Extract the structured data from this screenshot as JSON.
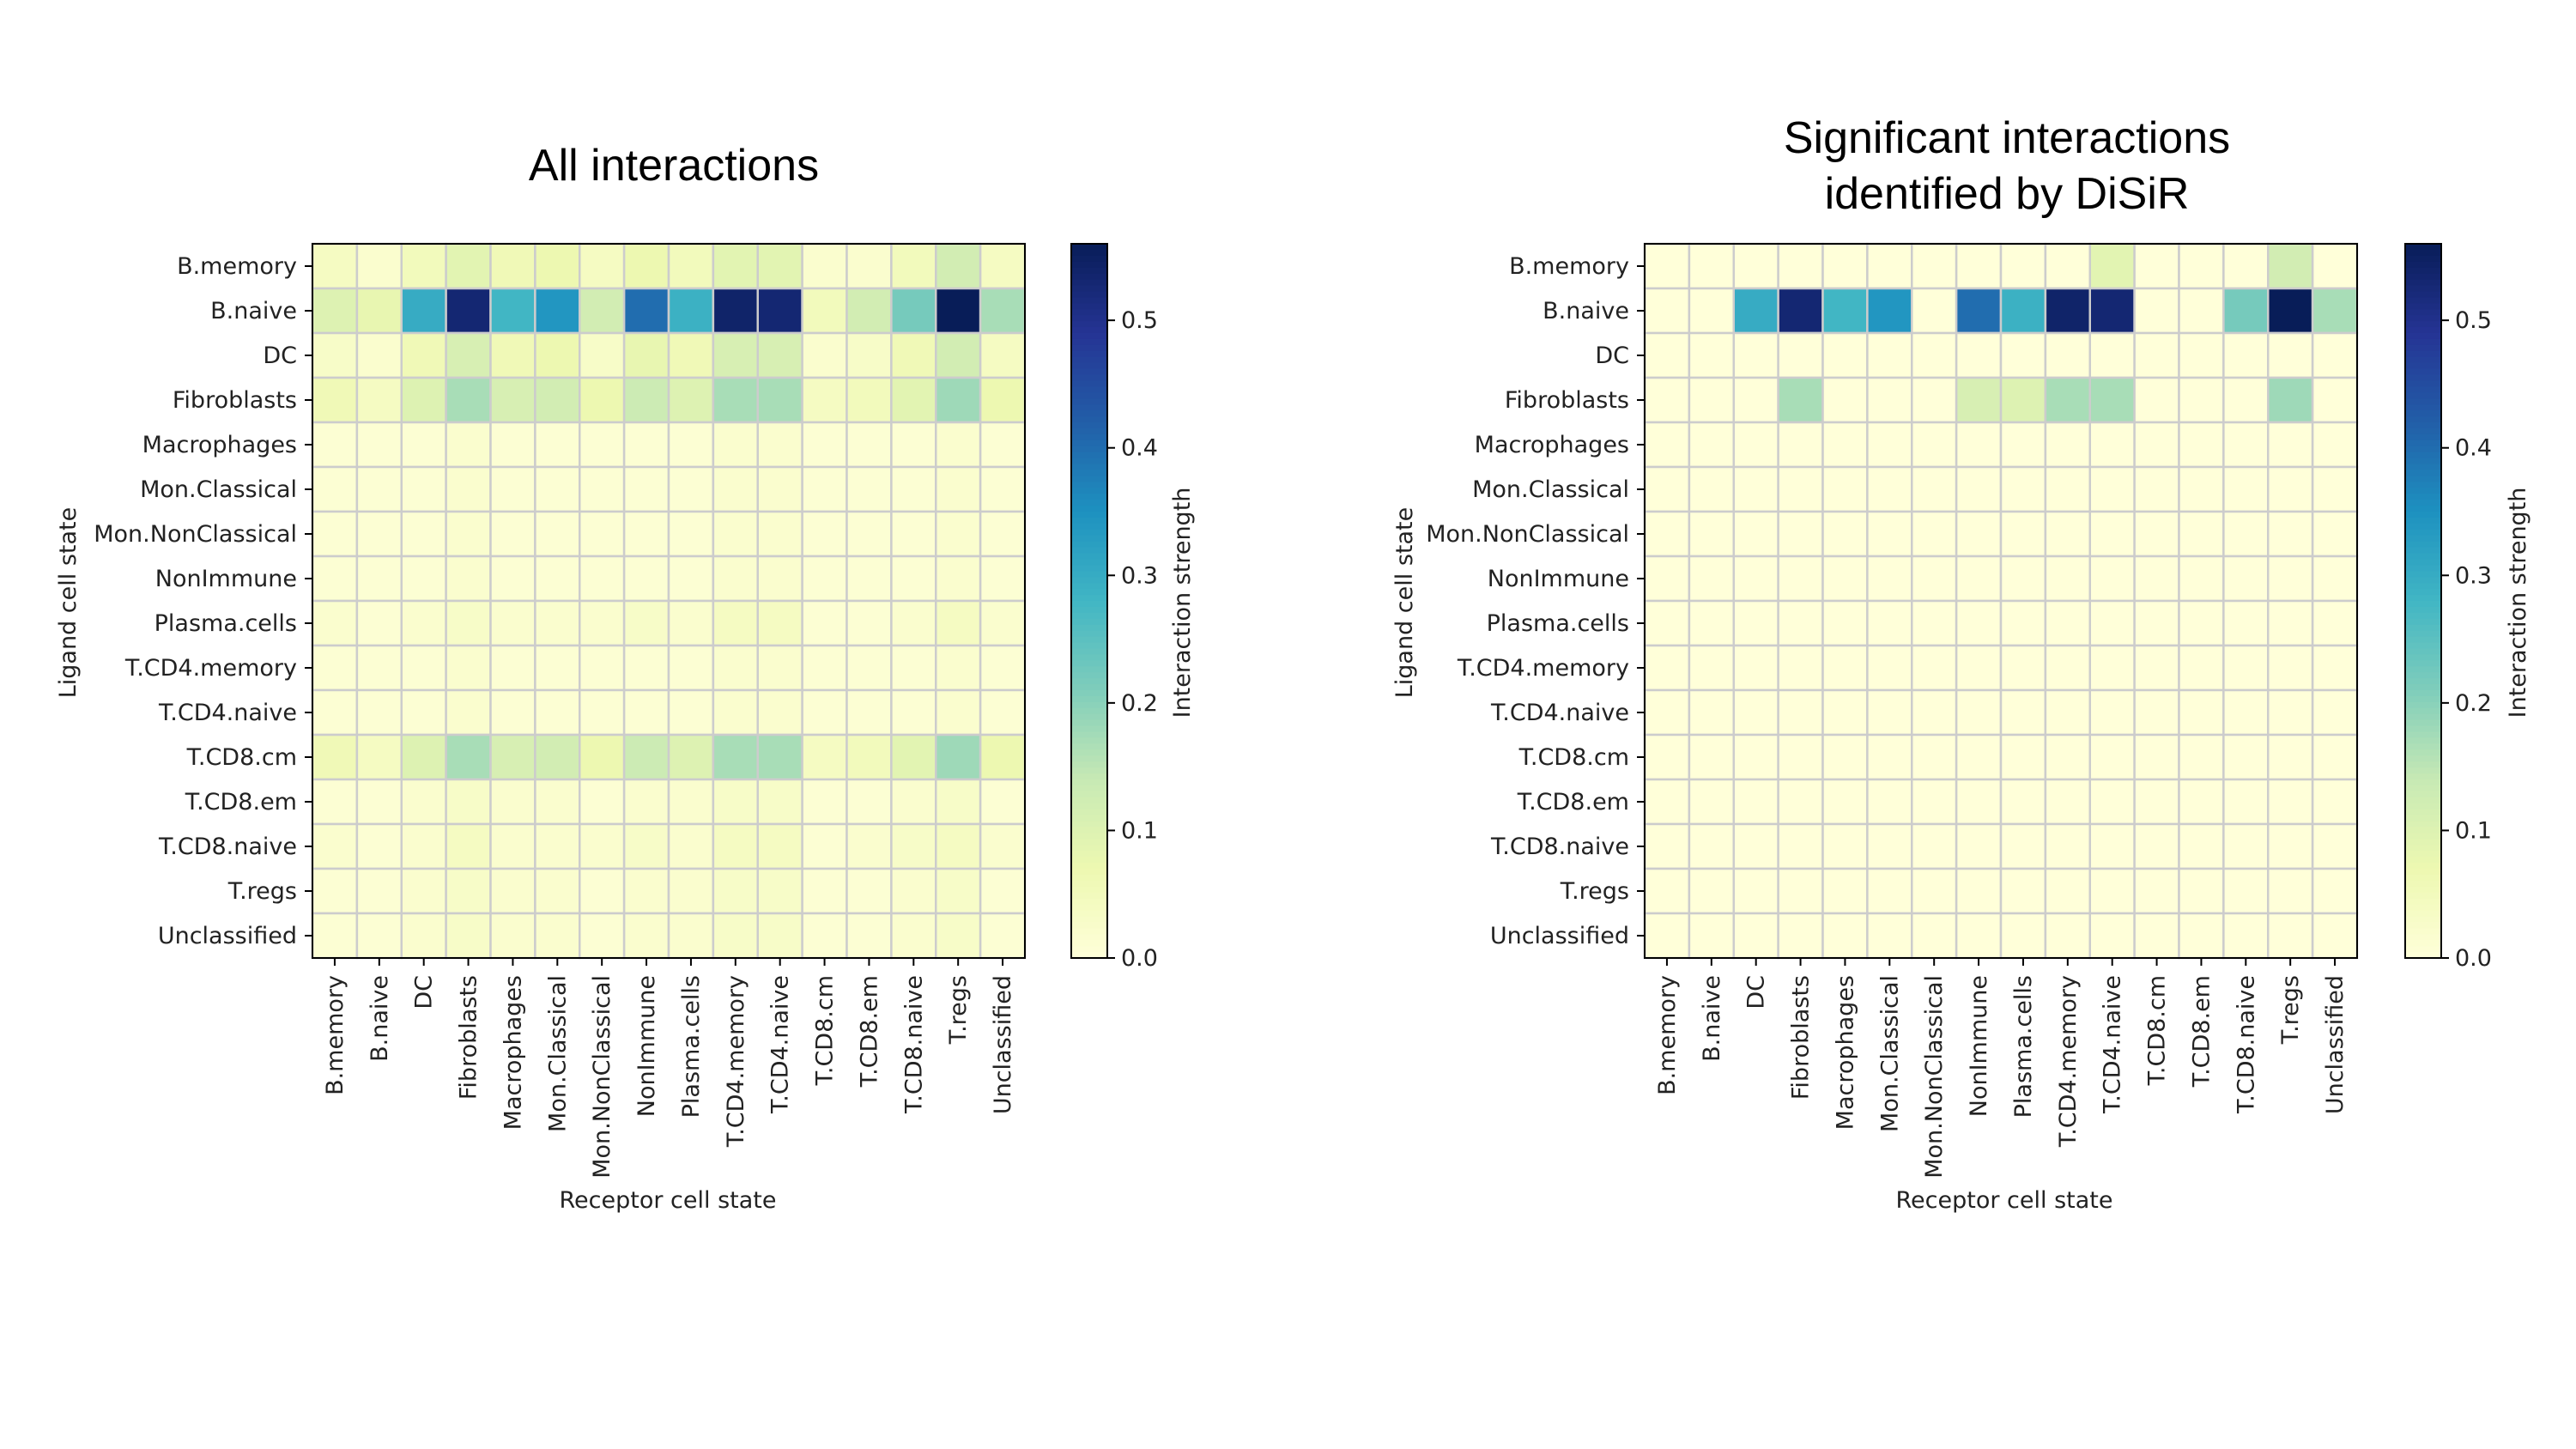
{
  "chart_data": [
    {
      "type": "heatmap",
      "title_lines": [
        "All interactions"
      ],
      "xlabel": "Receptor cell state",
      "ylabel": "Ligand cell state",
      "colorbar_label": "Interaction strength",
      "vmin": 0.0,
      "vmax": 0.56,
      "colorbar_ticks": [
        0.0,
        0.1,
        0.2,
        0.3,
        0.4,
        0.5
      ],
      "colorbar_tick_labels": [
        "0.0",
        "0.1",
        "0.2",
        "0.3",
        "0.4",
        "0.5"
      ],
      "rows": [
        "B.memory",
        "B.naive",
        "DC",
        "Fibroblasts",
        "Macrophages",
        "Mon.Classical",
        "Mon.NonClassical",
        "NonImmune",
        "Plasma.cells",
        "T.CD4.memory",
        "T.CD4.naive",
        "T.CD8.cm",
        "T.CD8.em",
        "T.CD8.naive",
        "T.regs",
        "Unclassified"
      ],
      "cols": [
        "B.memory",
        "B.naive",
        "DC",
        "Fibroblasts",
        "Macrophages",
        "Mon.Classical",
        "Mon.NonClassical",
        "NonImmune",
        "Plasma.cells",
        "T.CD4.memory",
        "T.CD4.naive",
        "T.CD8.cm",
        "T.CD8.em",
        "T.CD8.naive",
        "T.regs",
        "Unclassified"
      ],
      "values": [
        [
          0.04,
          0.02,
          0.05,
          0.09,
          0.06,
          0.07,
          0.04,
          0.07,
          0.05,
          0.09,
          0.09,
          0.02,
          0.02,
          0.05,
          0.12,
          0.04
        ],
        [
          0.1,
          0.08,
          0.3,
          0.53,
          0.28,
          0.34,
          0.12,
          0.4,
          0.29,
          0.54,
          0.53,
          0.05,
          0.12,
          0.22,
          0.56,
          0.17
        ],
        [
          0.03,
          0.02,
          0.06,
          0.11,
          0.06,
          0.07,
          0.03,
          0.08,
          0.06,
          0.11,
          0.11,
          0.02,
          0.03,
          0.06,
          0.12,
          0.04
        ],
        [
          0.06,
          0.04,
          0.1,
          0.17,
          0.11,
          0.12,
          0.07,
          0.13,
          0.1,
          0.17,
          0.17,
          0.04,
          0.05,
          0.09,
          0.18,
          0.07
        ],
        [
          0.01,
          0.01,
          0.01,
          0.02,
          0.01,
          0.01,
          0.01,
          0.01,
          0.01,
          0.02,
          0.02,
          0.01,
          0.01,
          0.01,
          0.02,
          0.01
        ],
        [
          0.01,
          0.01,
          0.01,
          0.02,
          0.01,
          0.01,
          0.01,
          0.01,
          0.01,
          0.02,
          0.02,
          0.01,
          0.01,
          0.01,
          0.02,
          0.01
        ],
        [
          0.01,
          0.01,
          0.01,
          0.02,
          0.01,
          0.01,
          0.01,
          0.01,
          0.01,
          0.02,
          0.02,
          0.01,
          0.01,
          0.01,
          0.02,
          0.01
        ],
        [
          0.01,
          0.01,
          0.01,
          0.02,
          0.01,
          0.01,
          0.01,
          0.01,
          0.01,
          0.02,
          0.02,
          0.01,
          0.01,
          0.01,
          0.02,
          0.01
        ],
        [
          0.02,
          0.01,
          0.02,
          0.03,
          0.02,
          0.02,
          0.02,
          0.03,
          0.02,
          0.04,
          0.04,
          0.01,
          0.01,
          0.02,
          0.04,
          0.02
        ],
        [
          0.01,
          0.01,
          0.01,
          0.02,
          0.01,
          0.01,
          0.01,
          0.01,
          0.01,
          0.02,
          0.02,
          0.01,
          0.01,
          0.01,
          0.02,
          0.01
        ],
        [
          0.01,
          0.01,
          0.01,
          0.02,
          0.01,
          0.01,
          0.01,
          0.01,
          0.01,
          0.02,
          0.02,
          0.01,
          0.01,
          0.01,
          0.02,
          0.01
        ],
        [
          0.06,
          0.04,
          0.1,
          0.17,
          0.11,
          0.12,
          0.07,
          0.13,
          0.1,
          0.17,
          0.17,
          0.04,
          0.05,
          0.09,
          0.18,
          0.07
        ],
        [
          0.01,
          0.01,
          0.02,
          0.03,
          0.02,
          0.02,
          0.01,
          0.02,
          0.02,
          0.03,
          0.03,
          0.01,
          0.01,
          0.02,
          0.03,
          0.01
        ],
        [
          0.02,
          0.01,
          0.02,
          0.04,
          0.02,
          0.02,
          0.02,
          0.03,
          0.02,
          0.04,
          0.04,
          0.01,
          0.02,
          0.03,
          0.04,
          0.02
        ],
        [
          0.01,
          0.01,
          0.02,
          0.03,
          0.02,
          0.02,
          0.01,
          0.02,
          0.02,
          0.03,
          0.03,
          0.01,
          0.01,
          0.02,
          0.03,
          0.01
        ],
        [
          0.01,
          0.01,
          0.02,
          0.03,
          0.02,
          0.02,
          0.01,
          0.02,
          0.02,
          0.03,
          0.03,
          0.01,
          0.01,
          0.02,
          0.03,
          0.01
        ]
      ]
    },
    {
      "type": "heatmap",
      "title_lines": [
        "Significant interactions",
        "identified by DiSiR"
      ],
      "xlabel": "Receptor cell state",
      "ylabel": "Ligand cell state",
      "colorbar_label": "Interaction strength",
      "vmin": 0.0,
      "vmax": 0.56,
      "colorbar_ticks": [
        0.0,
        0.1,
        0.2,
        0.3,
        0.4,
        0.5
      ],
      "colorbar_tick_labels": [
        "0.0",
        "0.1",
        "0.2",
        "0.3",
        "0.4",
        "0.5"
      ],
      "rows": [
        "B.memory",
        "B.naive",
        "DC",
        "Fibroblasts",
        "Macrophages",
        "Mon.Classical",
        "Mon.NonClassical",
        "NonImmune",
        "Plasma.cells",
        "T.CD4.memory",
        "T.CD4.naive",
        "T.CD8.cm",
        "T.CD8.em",
        "T.CD8.naive",
        "T.regs",
        "Unclassified"
      ],
      "cols": [
        "B.memory",
        "B.naive",
        "DC",
        "Fibroblasts",
        "Macrophages",
        "Mon.Classical",
        "Mon.NonClassical",
        "NonImmune",
        "Plasma.cells",
        "T.CD4.memory",
        "T.CD4.naive",
        "T.CD8.cm",
        "T.CD8.em",
        "T.CD8.naive",
        "T.regs",
        "Unclassified"
      ],
      "values": [
        [
          0,
          0,
          0,
          0,
          0,
          0,
          0,
          0,
          0,
          0,
          0.09,
          0,
          0,
          0,
          0.12,
          0
        ],
        [
          0,
          0,
          0.3,
          0.53,
          0.28,
          0.34,
          0,
          0.4,
          0.29,
          0.54,
          0.53,
          0,
          0,
          0.22,
          0.56,
          0.17
        ],
        [
          0,
          0,
          0,
          0,
          0,
          0,
          0,
          0,
          0,
          0,
          0,
          0,
          0,
          0,
          0,
          0
        ],
        [
          0,
          0,
          0,
          0.17,
          0,
          0,
          0,
          0.11,
          0.1,
          0.17,
          0.17,
          0,
          0,
          0,
          0.18,
          0
        ],
        [
          0,
          0,
          0,
          0,
          0,
          0,
          0,
          0,
          0,
          0,
          0,
          0,
          0,
          0,
          0,
          0
        ],
        [
          0,
          0,
          0,
          0,
          0,
          0,
          0,
          0,
          0,
          0,
          0,
          0,
          0,
          0,
          0,
          0
        ],
        [
          0,
          0,
          0,
          0,
          0,
          0,
          0,
          0,
          0,
          0,
          0,
          0,
          0,
          0,
          0,
          0
        ],
        [
          0,
          0,
          0,
          0,
          0,
          0,
          0,
          0,
          0,
          0,
          0,
          0,
          0,
          0,
          0,
          0
        ],
        [
          0,
          0,
          0,
          0,
          0,
          0,
          0,
          0,
          0,
          0,
          0,
          0,
          0,
          0,
          0,
          0
        ],
        [
          0,
          0,
          0,
          0,
          0,
          0,
          0,
          0,
          0,
          0,
          0,
          0,
          0,
          0,
          0,
          0
        ],
        [
          0,
          0,
          0,
          0,
          0,
          0,
          0,
          0,
          0,
          0,
          0,
          0,
          0,
          0,
          0,
          0
        ],
        [
          0,
          0,
          0,
          0,
          0,
          0,
          0,
          0,
          0,
          0,
          0,
          0,
          0,
          0,
          0,
          0
        ],
        [
          0,
          0,
          0,
          0,
          0,
          0,
          0,
          0,
          0,
          0,
          0,
          0,
          0,
          0,
          0,
          0
        ],
        [
          0,
          0,
          0,
          0,
          0,
          0,
          0,
          0,
          0,
          0,
          0,
          0,
          0,
          0,
          0,
          0
        ],
        [
          0,
          0,
          0,
          0,
          0,
          0,
          0,
          0,
          0,
          0,
          0,
          0,
          0,
          0,
          0,
          0
        ],
        [
          0,
          0,
          0,
          0,
          0,
          0,
          0,
          0,
          0,
          0,
          0,
          0,
          0,
          0,
          0,
          0
        ]
      ]
    }
  ],
  "colormap": {
    "name": "YlGnBu",
    "stops": [
      "#ffffd9",
      "#edf8b1",
      "#c7e9b4",
      "#7fcdbb",
      "#41b6c4",
      "#1d91c0",
      "#225ea8",
      "#253494",
      "#081d58"
    ]
  },
  "grid_color": "#cccccc",
  "frame_color": "#000000"
}
